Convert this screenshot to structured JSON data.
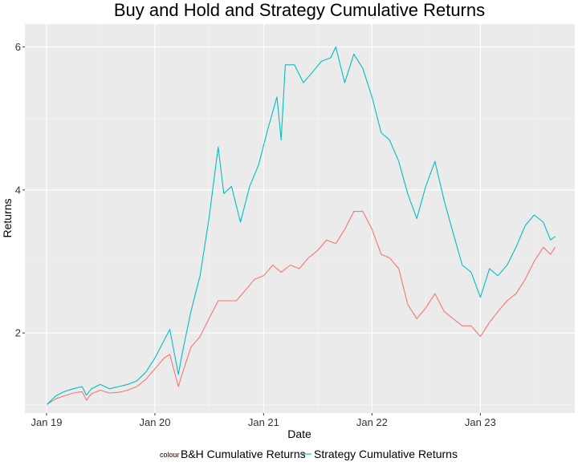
{
  "chart_data": {
    "type": "line",
    "title": "Buy and Hold and Strategy Cumulative Returns",
    "xlabel": "Date",
    "ylabel": "Returns",
    "x_ticks": [
      {
        "date": "2019-01-01",
        "label": "Jan 19"
      },
      {
        "date": "2020-01-01",
        "label": "Jan 20"
      },
      {
        "date": "2021-01-01",
        "label": "Jan 21"
      },
      {
        "date": "2022-01-01",
        "label": "Jan 22"
      },
      {
        "date": "2023-01-01",
        "label": "Jan 23"
      }
    ],
    "xlim": [
      "2018-10-20",
      "2023-11-15"
    ],
    "y_ticks": [
      2,
      4,
      6
    ],
    "ylim": [
      0.88,
      6.32
    ],
    "grid": true,
    "legend": {
      "title": "colour",
      "position": "bottom"
    },
    "series": [
      {
        "name": "B&H Cumulative Returns",
        "color": "#F8766D",
        "points": [
          [
            "2019-01-02",
            1.0
          ],
          [
            "2019-02-01",
            1.08
          ],
          [
            "2019-03-01",
            1.12
          ],
          [
            "2019-04-01",
            1.16
          ],
          [
            "2019-05-01",
            1.18
          ],
          [
            "2019-05-15",
            1.06
          ],
          [
            "2019-06-01",
            1.15
          ],
          [
            "2019-07-01",
            1.2
          ],
          [
            "2019-08-01",
            1.16
          ],
          [
            "2019-09-01",
            1.17
          ],
          [
            "2019-10-01",
            1.2
          ],
          [
            "2019-11-01",
            1.25
          ],
          [
            "2019-12-01",
            1.35
          ],
          [
            "2020-01-01",
            1.5
          ],
          [
            "2020-02-01",
            1.65
          ],
          [
            "2020-02-20",
            1.7
          ],
          [
            "2020-03-20",
            1.25
          ],
          [
            "2020-04-01",
            1.42
          ],
          [
            "2020-05-01",
            1.8
          ],
          [
            "2020-06-01",
            1.95
          ],
          [
            "2020-07-01",
            2.2
          ],
          [
            "2020-08-01",
            2.45
          ],
          [
            "2020-09-01",
            2.45
          ],
          [
            "2020-10-01",
            2.45
          ],
          [
            "2020-11-01",
            2.6
          ],
          [
            "2020-12-01",
            2.75
          ],
          [
            "2021-01-01",
            2.8
          ],
          [
            "2021-02-01",
            2.95
          ],
          [
            "2021-03-01",
            2.85
          ],
          [
            "2021-04-01",
            2.95
          ],
          [
            "2021-05-01",
            2.9
          ],
          [
            "2021-06-01",
            3.05
          ],
          [
            "2021-07-01",
            3.15
          ],
          [
            "2021-08-01",
            3.3
          ],
          [
            "2021-09-01",
            3.25
          ],
          [
            "2021-10-01",
            3.45
          ],
          [
            "2021-11-01",
            3.7
          ],
          [
            "2021-12-01",
            3.7
          ],
          [
            "2022-01-01",
            3.45
          ],
          [
            "2022-02-01",
            3.1
          ],
          [
            "2022-03-01",
            3.05
          ],
          [
            "2022-04-01",
            2.9
          ],
          [
            "2022-05-01",
            2.4
          ],
          [
            "2022-06-01",
            2.2
          ],
          [
            "2022-07-01",
            2.35
          ],
          [
            "2022-08-01",
            2.55
          ],
          [
            "2022-09-01",
            2.3
          ],
          [
            "2022-10-01",
            2.2
          ],
          [
            "2022-11-01",
            2.1
          ],
          [
            "2022-12-01",
            2.1
          ],
          [
            "2023-01-01",
            1.95
          ],
          [
            "2023-02-01",
            2.15
          ],
          [
            "2023-03-01",
            2.3
          ],
          [
            "2023-04-01",
            2.45
          ],
          [
            "2023-05-01",
            2.55
          ],
          [
            "2023-06-01",
            2.75
          ],
          [
            "2023-07-01",
            3.0
          ],
          [
            "2023-08-01",
            3.2
          ],
          [
            "2023-08-25",
            3.1
          ],
          [
            "2023-09-10",
            3.2
          ]
        ]
      },
      {
        "name": "Strategy Cumulative Returns",
        "color": "#00BFC4",
        "points": [
          [
            "2019-01-02",
            1.0
          ],
          [
            "2019-02-01",
            1.12
          ],
          [
            "2019-03-01",
            1.18
          ],
          [
            "2019-04-01",
            1.22
          ],
          [
            "2019-05-01",
            1.25
          ],
          [
            "2019-05-15",
            1.13
          ],
          [
            "2019-06-01",
            1.22
          ],
          [
            "2019-07-01",
            1.28
          ],
          [
            "2019-08-01",
            1.22
          ],
          [
            "2019-09-01",
            1.25
          ],
          [
            "2019-10-01",
            1.28
          ],
          [
            "2019-11-01",
            1.33
          ],
          [
            "2019-12-01",
            1.45
          ],
          [
            "2020-01-01",
            1.65
          ],
          [
            "2020-02-01",
            1.9
          ],
          [
            "2020-02-20",
            2.05
          ],
          [
            "2020-03-20",
            1.42
          ],
          [
            "2020-04-01",
            1.7
          ],
          [
            "2020-05-01",
            2.3
          ],
          [
            "2020-06-01",
            2.8
          ],
          [
            "2020-07-01",
            3.6
          ],
          [
            "2020-08-01",
            4.6
          ],
          [
            "2020-08-20",
            3.95
          ],
          [
            "2020-09-15",
            4.05
          ],
          [
            "2020-10-15",
            3.55
          ],
          [
            "2020-11-15",
            4.05
          ],
          [
            "2020-12-15",
            4.35
          ],
          [
            "2021-01-15",
            4.85
          ],
          [
            "2021-02-15",
            5.3
          ],
          [
            "2021-03-01",
            4.7
          ],
          [
            "2021-03-15",
            5.75
          ],
          [
            "2021-04-15",
            5.75
          ],
          [
            "2021-05-15",
            5.5
          ],
          [
            "2021-06-15",
            5.65
          ],
          [
            "2021-07-15",
            5.8
          ],
          [
            "2021-08-15",
            5.85
          ],
          [
            "2021-09-01",
            6.0
          ],
          [
            "2021-10-01",
            5.5
          ],
          [
            "2021-11-01",
            5.9
          ],
          [
            "2021-12-01",
            5.7
          ],
          [
            "2022-01-01",
            5.3
          ],
          [
            "2022-02-01",
            4.8
          ],
          [
            "2022-03-01",
            4.7
          ],
          [
            "2022-04-01",
            4.4
          ],
          [
            "2022-05-01",
            3.95
          ],
          [
            "2022-06-01",
            3.6
          ],
          [
            "2022-07-01",
            4.05
          ],
          [
            "2022-08-01",
            4.4
          ],
          [
            "2022-09-01",
            3.85
          ],
          [
            "2022-10-01",
            3.4
          ],
          [
            "2022-11-01",
            2.95
          ],
          [
            "2022-12-01",
            2.85
          ],
          [
            "2023-01-01",
            2.5
          ],
          [
            "2023-02-01",
            2.9
          ],
          [
            "2023-03-01",
            2.8
          ],
          [
            "2023-04-01",
            2.95
          ],
          [
            "2023-05-01",
            3.2
          ],
          [
            "2023-06-01",
            3.5
          ],
          [
            "2023-07-01",
            3.65
          ],
          [
            "2023-08-01",
            3.55
          ],
          [
            "2023-08-25",
            3.3
          ],
          [
            "2023-09-10",
            3.35
          ]
        ]
      }
    ]
  }
}
